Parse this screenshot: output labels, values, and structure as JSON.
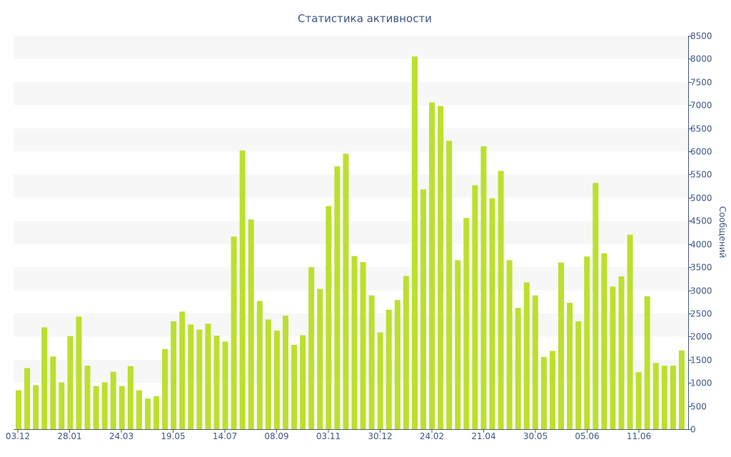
{
  "chart_data": {
    "type": "bar",
    "title": "Статистика активности",
    "xlabel": "",
    "ylabel": "Сообщений",
    "y_axis_side": "right",
    "ylim": [
      0,
      8500
    ],
    "y_ticks": [
      0,
      500,
      1000,
      1500,
      2000,
      2500,
      3000,
      3500,
      4000,
      4500,
      5000,
      5500,
      6000,
      6500,
      7000,
      7500,
      8000,
      8500
    ],
    "x_tick_labels": [
      "03.12",
      "28.01",
      "24.03",
      "19.05",
      "14.07",
      "08.09",
      "03.11",
      "30.12",
      "24.02",
      "21.04",
      "30.05",
      "05.06",
      "11.06"
    ],
    "grid": "horizontal alternating bands",
    "legend": "none",
    "colors": {
      "bar": "#bbe02e",
      "text": "#3e5686",
      "axis": "#3e5686",
      "band": "#f7f7f7"
    },
    "values": [
      840,
      1320,
      950,
      2200,
      1570,
      1010,
      2010,
      2430,
      1370,
      930,
      1010,
      1240,
      930,
      1360,
      840,
      660,
      710,
      1730,
      2330,
      2540,
      2260,
      2150,
      2280,
      2020,
      1890,
      4160,
      6020,
      4530,
      2770,
      2370,
      2130,
      2450,
      1820,
      2030,
      3500,
      3030,
      4820,
      5680,
      5950,
      3740,
      3610,
      2890,
      2090,
      2580,
      2790,
      3310,
      8050,
      5180,
      7060,
      6980,
      6230,
      3650,
      4560,
      5270,
      6110,
      4990,
      5580,
      3650,
      2620,
      3170,
      2890,
      1560,
      1690,
      3600,
      2730,
      2330,
      3730,
      5320,
      3800,
      3080,
      3300,
      4200,
      1230,
      2870,
      1430,
      1370,
      1370,
      1700
    ]
  }
}
